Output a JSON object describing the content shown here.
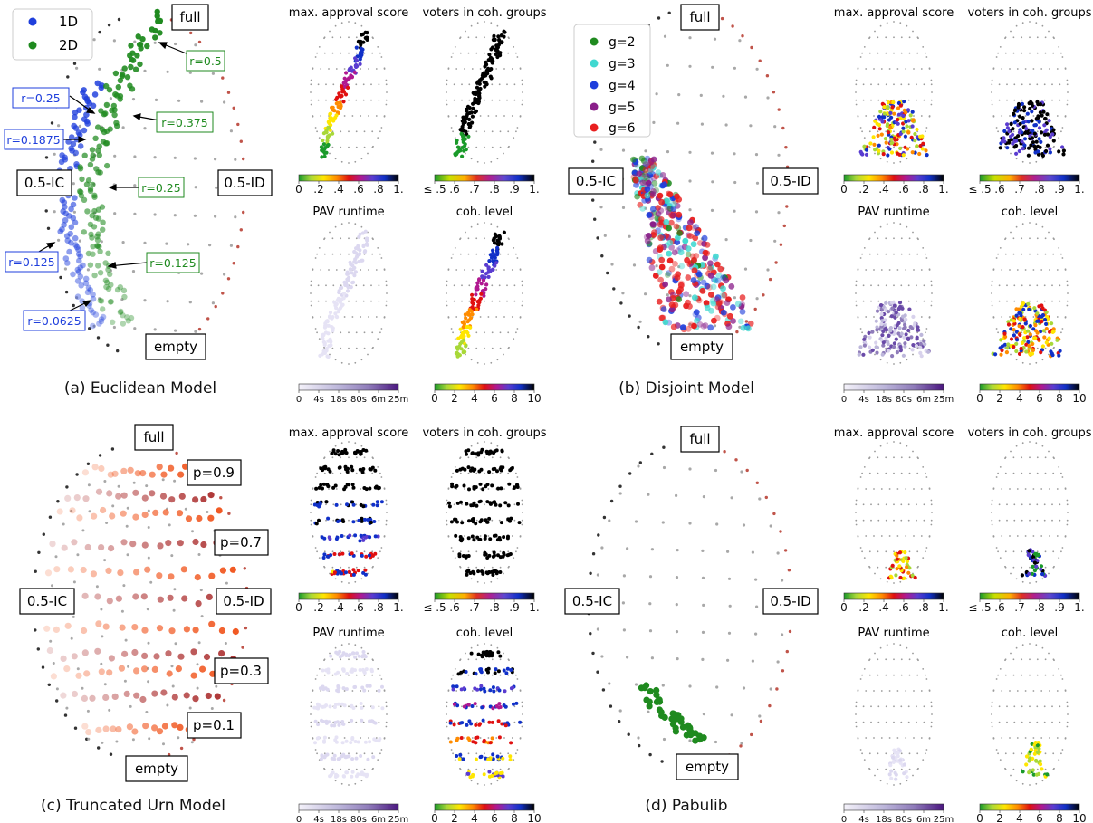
{
  "colors": {
    "blue_1d": "#1f3fdc",
    "green_2d": "#1f8a1f",
    "gray_dot": "#a0a0a0",
    "red_dot": "#c0544a",
    "dark_dot": "#333333",
    "urn_orange": "#f15a24",
    "urn_red": "#b03a3a",
    "g2": "#1f8a1f",
    "g3": "#40d8d0",
    "g4": "#1f3fdc",
    "g5": "#8a1f8a",
    "g6": "#e81f1f"
  },
  "common_labels": {
    "full": "full",
    "empty": "empty",
    "ic": "0.5-IC",
    "id": "0.5-ID",
    "mini_titles": [
      "max. approval score",
      "voters in coh. groups",
      "PAV runtime",
      "coh. level"
    ],
    "cb_approval_ticks": [
      "0",
      ".2",
      ".4",
      ".6",
      ".8",
      "1."
    ],
    "cb_voters_ticks": [
      "≤ .5",
      ".6",
      ".7",
      ".8",
      ".9",
      "1."
    ],
    "cb_runtime_ticks": [
      "0",
      "4s",
      "18s",
      "80s",
      "6m",
      "25m"
    ],
    "cb_coh_ticks": [
      "0",
      "2",
      "4",
      "6",
      "8",
      "10"
    ]
  },
  "panel_a": {
    "caption": "(a) Euclidean Model",
    "legend": [
      {
        "label": "1D",
        "color": "#1f3fdc"
      },
      {
        "label": "2D",
        "color": "#1f8a1f"
      }
    ],
    "blue_labels": [
      "r=0.25",
      "r=0.1875",
      "r=0.125",
      "r=0.0625"
    ],
    "green_labels": [
      "r=0.5",
      "r=0.375",
      "r=0.25",
      "r=0.125"
    ]
  },
  "panel_b": {
    "caption": "(b) Disjoint Model",
    "legend": [
      {
        "label": "g=2",
        "color": "#1f8a1f"
      },
      {
        "label": "g=3",
        "color": "#40d8d0"
      },
      {
        "label": "g=4",
        "color": "#1f3fdc"
      },
      {
        "label": "g=5",
        "color": "#8a1f8a"
      },
      {
        "label": "g=6",
        "color": "#e81f1f"
      }
    ]
  },
  "panel_c": {
    "caption": "(c) Truncated Urn Model",
    "p_labels": [
      "p=0.9",
      "p=0.7",
      "p=0.3",
      "p=0.1"
    ]
  },
  "panel_d": {
    "caption": "(d) Pabulib"
  },
  "chart_data": [
    {
      "type": "scatter",
      "title": "(a) Euclidean Model",
      "series": [
        {
          "name": "1D"
        },
        {
          "name": "2D"
        }
      ]
    },
    {
      "type": "scatter",
      "title": "(b) Disjoint Model",
      "series": [
        {
          "name": "g=2"
        },
        {
          "name": "g=3"
        },
        {
          "name": "g=4"
        },
        {
          "name": "g=5"
        },
        {
          "name": "g=6"
        }
      ]
    },
    {
      "type": "scatter",
      "title": "(c) Truncated Urn Model"
    },
    {
      "type": "scatter",
      "title": "(d) Pabulib"
    }
  ]
}
